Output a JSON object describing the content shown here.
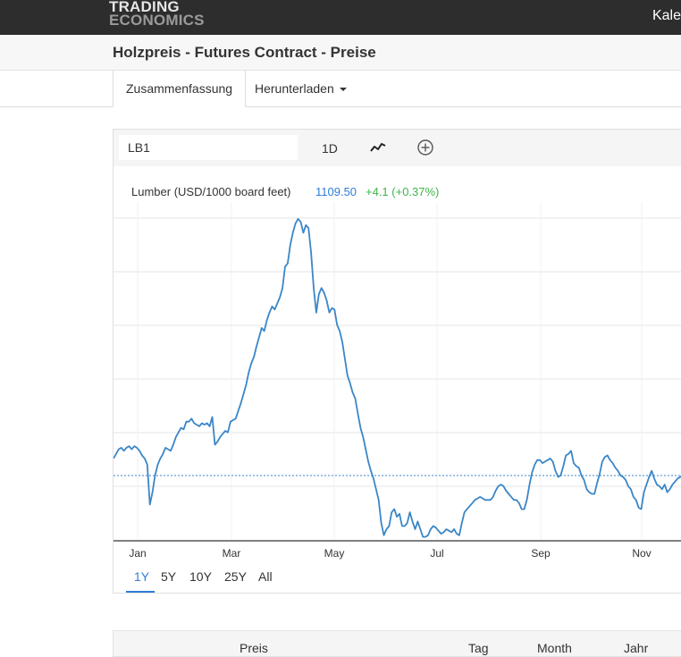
{
  "header": {
    "logo_line1": "TRADING",
    "logo_line2": "ECONOMICS",
    "nav_partial": "Kale"
  },
  "page": {
    "title": "Holzpreis - Futures Contract - Preise"
  },
  "tabs": {
    "summary": "Zusammenfassung",
    "download": "Herunterladen"
  },
  "chart_toolbar": {
    "symbol_value": "LB1",
    "interval": "1D",
    "icons": [
      "line-chart-icon",
      "add-circle-icon"
    ]
  },
  "quote": {
    "label": "Lumber (USD/1000 board feet)",
    "price": "1109.50",
    "change": "+4.1 (+0.37%)",
    "price_color": "#2f7ed8",
    "change_color": "#3cb64a"
  },
  "range_buttons": [
    "1Y",
    "5Y",
    "10Y",
    "25Y",
    "All"
  ],
  "active_range": "1Y",
  "table_headers": [
    "Preis",
    "Tag",
    "Month",
    "Jahr"
  ],
  "colors": {
    "line": "#3a86c8",
    "last_price_line": "#3a86c8",
    "grid": "#e6e6e6",
    "axis": "#333333"
  },
  "chart_data": {
    "type": "line",
    "xlabels": [
      "Jan",
      "Mar",
      "May",
      "Jul",
      "Sep",
      "Nov"
    ],
    "series": [
      {
        "name": "Lumber (USD/1000 board feet)",
        "values": [
          1165,
          1180,
          1195,
          1200,
          1190,
          1200,
          1205,
          1195,
          1205,
          1200,
          1190,
          1175,
          1165,
          1145,
          1015,
          1055,
          1110,
          1145,
          1165,
          1180,
          1200,
          1195,
          1190,
          1210,
          1235,
          1250,
          1265,
          1260,
          1285,
          1285,
          1295,
          1280,
          1275,
          1270,
          1280,
          1275,
          1280,
          1270,
          1300,
          1210,
          1220,
          1235,
          1245,
          1255,
          1250,
          1285,
          1290,
          1295,
          1320,
          1345,
          1375,
          1405,
          1445,
          1475,
          1495,
          1530,
          1560,
          1590,
          1580,
          1615,
          1640,
          1660,
          1650,
          1670,
          1690,
          1720,
          1790,
          1800,
          1860,
          1900,
          1930,
          1945,
          1935,
          1900,
          1925,
          1915,
          1835,
          1720,
          1640,
          1700,
          1720,
          1705,
          1680,
          1640,
          1655,
          1650,
          1600,
          1580,
          1545,
          1490,
          1435,
          1410,
          1380,
          1360,
          1310,
          1265,
          1235,
          1195,
          1155,
          1125,
          1100,
          1065,
          1030,
          955,
          915,
          935,
          945,
          990,
          1000,
          975,
          985,
          945,
          945,
          955,
          990,
          960,
          935,
          960,
          935,
          910,
          910,
          915,
          935,
          945,
          940,
          930,
          920,
          925,
          935,
          930,
          925,
          935,
          920,
          915,
          955,
          990,
          1000,
          1010,
          1020,
          1030,
          1035,
          1040,
          1035,
          1030,
          1030,
          1030,
          1040,
          1060,
          1075,
          1080,
          1075,
          1060,
          1050,
          1040,
          1030,
          1030,
          1020,
          1000,
          1000,
          1030,
          1080,
          1120,
          1145,
          1160,
          1160,
          1150,
          1155,
          1160,
          1165,
          1155,
          1125,
          1105,
          1110,
          1140,
          1175,
          1180,
          1190,
          1150,
          1140,
          1135,
          1110,
          1095,
          1065,
          1055,
          1050,
          1050,
          1085,
          1115,
          1155,
          1170,
          1175,
          1160,
          1150,
          1135,
          1125,
          1110,
          1105,
          1095,
          1075,
          1065,
          1040,
          1030,
          1005,
          1000,
          1055,
          1080,
          1105,
          1125,
          1100,
          1080,
          1075,
          1065,
          1080,
          1055,
          1065,
          1080,
          1090,
          1100,
          1105,
          1110,
          1109.5
        ]
      }
    ],
    "title": "Lumber (USD/1000 board feet)",
    "xlabel": "",
    "ylabel": "",
    "ylim": [
      900,
      2000
    ],
    "grid": true,
    "last_price": 1109.5
  }
}
